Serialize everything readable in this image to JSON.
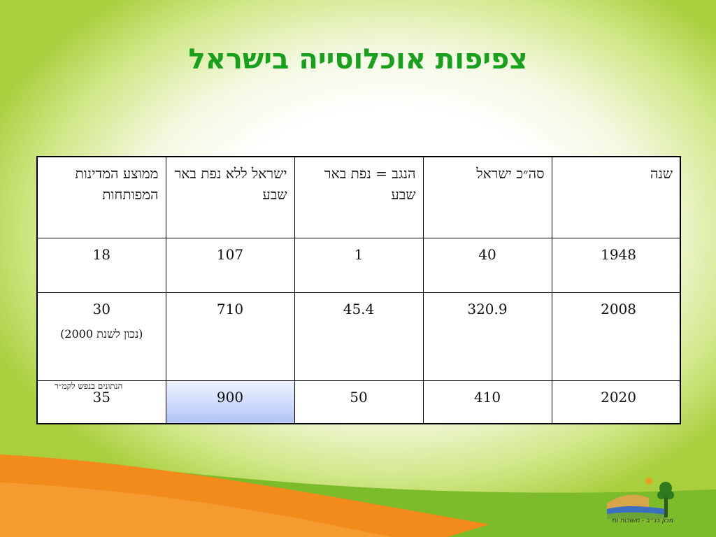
{
  "title": "צפיפות אוכלוסייה בישראל",
  "table": {
    "headers": [
      "שנה",
      "סה״כ ישראל",
      "הנגב = נפת באר שבע",
      "ישראל ללא נפת באר שבע",
      "ממוצע המדינות המפותחות"
    ],
    "rows": [
      [
        "1948",
        "40",
        "1",
        "107",
        "18"
      ],
      [
        "2008",
        "320.9",
        "45.4",
        "710",
        "30"
      ],
      [
        "2020",
        "410",
        "50",
        "900",
        "35"
      ]
    ],
    "row2_subnote": "(נכון לשנת 2000)"
  },
  "footnote": "הנתונים בנפש לקמ״ר",
  "logo": {
    "icon": "landscape-tree-logo",
    "caption": "מכון בנ״ב - משוכות וחי"
  },
  "colors": {
    "title": "#18a11d",
    "background_edge": "#a9cf3d",
    "swoosh_orange": "#f28a1c",
    "swoosh_green": "#7cbb2a",
    "highlight_cell": "#cbd8fb"
  }
}
